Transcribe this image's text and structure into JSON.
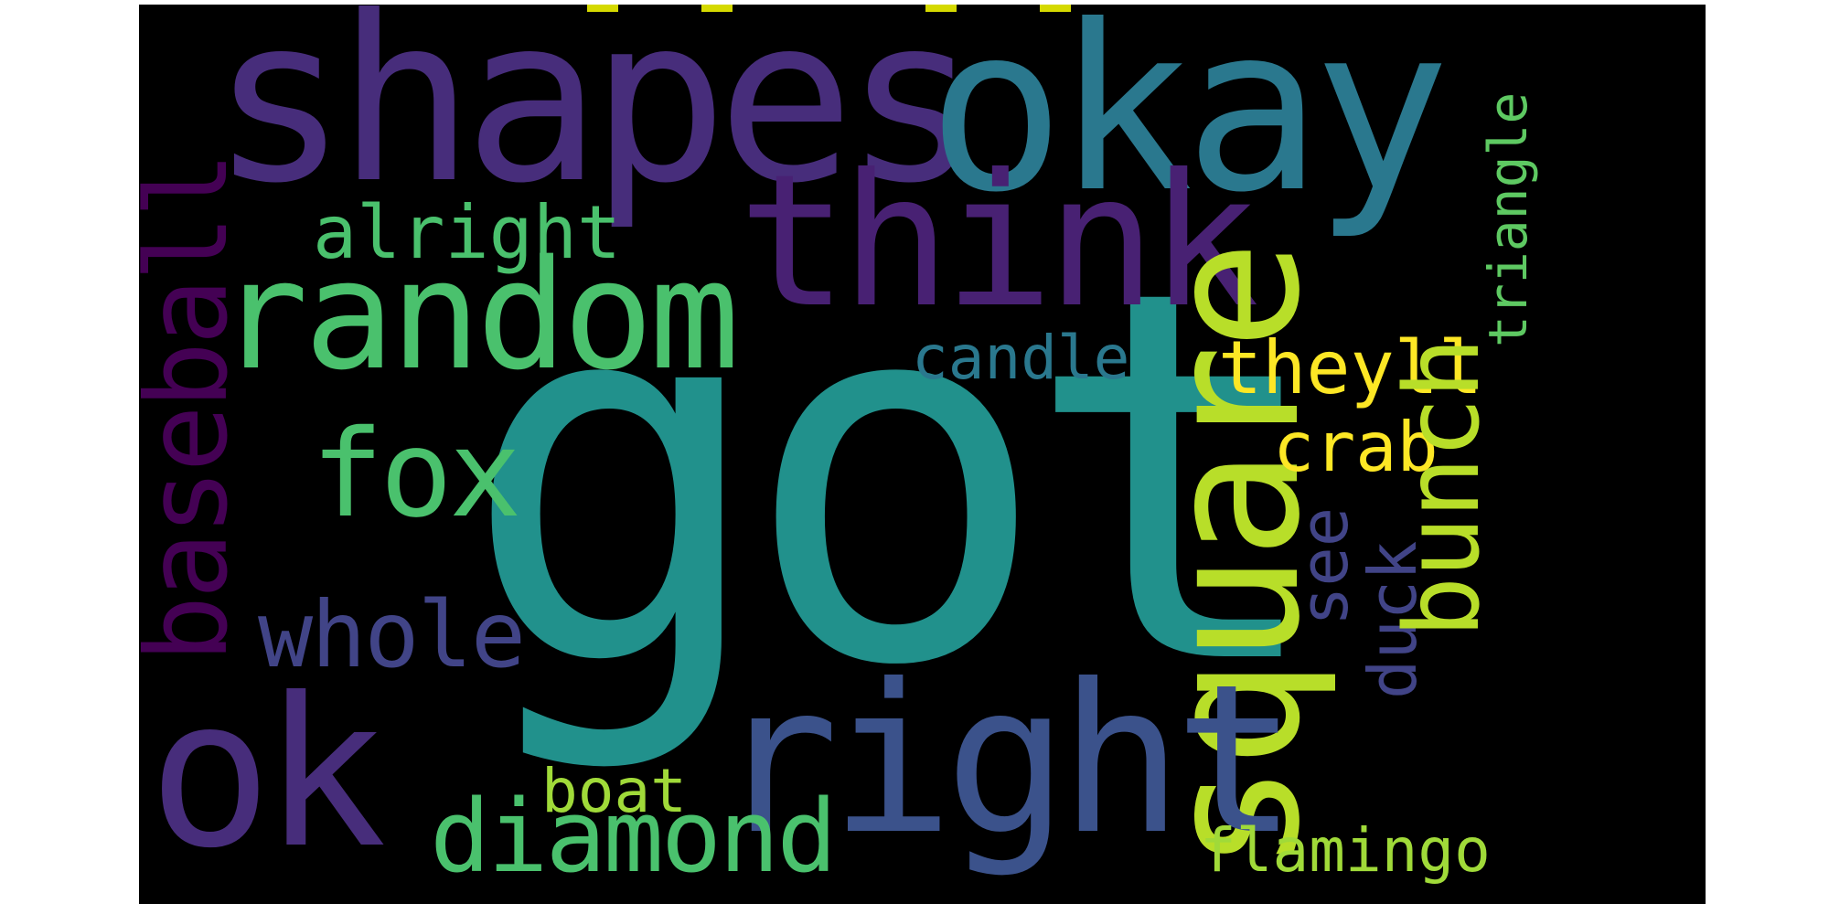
{
  "wordcloud": {
    "background": "#000000",
    "frame_background": "#ffffff",
    "words": [
      {
        "text": "got",
        "color": "#21918c"
      },
      {
        "text": "shapes",
        "color": "#472d7b"
      },
      {
        "text": "okay",
        "color": "#2a788e"
      },
      {
        "text": "think",
        "color": "#482173"
      },
      {
        "text": "random",
        "color": "#4ac16d"
      },
      {
        "text": "square",
        "color": "#b8de29"
      },
      {
        "text": "right",
        "color": "#3b528b"
      },
      {
        "text": "ok",
        "color": "#472d7b"
      },
      {
        "text": "baseball",
        "color": "#440154"
      },
      {
        "text": "alright",
        "color": "#4ac16d"
      },
      {
        "text": "fox",
        "color": "#4ac16d"
      },
      {
        "text": "whole",
        "color": "#414487"
      },
      {
        "text": "diamond",
        "color": "#4ac16d"
      },
      {
        "text": "candle",
        "color": "#2a788e"
      },
      {
        "text": "theyll",
        "color": "#fde725"
      },
      {
        "text": "crab",
        "color": "#fde725"
      },
      {
        "text": "see",
        "color": "#414487"
      },
      {
        "text": "duck",
        "color": "#414487"
      },
      {
        "text": "bunch",
        "color": "#b8de29"
      },
      {
        "text": "triangle",
        "color": "#5ec962"
      },
      {
        "text": "boat",
        "color": "#a0da39"
      },
      {
        "text": "flamingo",
        "color": "#a0da39"
      }
    ],
    "top_marks_color": "#d5d900"
  }
}
